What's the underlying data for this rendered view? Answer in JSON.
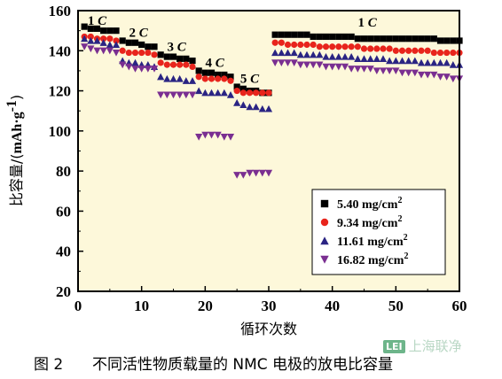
{
  "chart_data": {
    "type": "scatter",
    "xlabel": "循环次数",
    "ylabel_prefix": "比容量/(",
    "ylabel_unit": "mAh·g",
    "ylabel_sup": "-1",
    "ylabel_suffix": ")",
    "xlim": [
      0,
      60
    ],
    "ylim": [
      20,
      160
    ],
    "xticks": [
      0,
      10,
      20,
      30,
      40,
      50,
      60
    ],
    "yticks": [
      20,
      40,
      60,
      80,
      100,
      120,
      140,
      160
    ],
    "grid": false,
    "legend_position": "bottom-right",
    "plot_background": "#fdf8da",
    "annotations": [
      {
        "rate": "1",
        "unit": "C",
        "x": 3,
        "y": 153
      },
      {
        "rate": "2",
        "unit": "C",
        "x": 9.5,
        "y": 147
      },
      {
        "rate": "3",
        "unit": "C",
        "x": 15.5,
        "y": 140
      },
      {
        "rate": "4",
        "unit": "C",
        "x": 21.5,
        "y": 132
      },
      {
        "rate": "5",
        "unit": "C",
        "x": 27,
        "y": 124
      },
      {
        "rate": "1",
        "unit": "C",
        "x": 45.5,
        "y": 152
      }
    ],
    "series": [
      {
        "name": "5.40 mg/cm",
        "sup": "2",
        "marker": "square",
        "color": "#000000",
        "y": [
          152,
          151,
          151,
          150,
          150,
          150,
          145,
          144,
          144,
          143,
          142,
          142,
          138,
          137,
          137,
          136,
          136,
          135,
          130,
          129,
          129,
          128,
          128,
          127,
          122,
          121,
          120,
          120,
          119,
          119,
          148,
          148,
          148,
          148,
          148,
          148,
          147,
          147,
          147,
          147,
          147,
          147,
          147,
          146,
          146,
          146,
          146,
          146,
          146,
          146,
          146,
          146,
          146,
          146,
          146,
          146,
          145,
          145,
          145,
          145
        ]
      },
      {
        "name": "9.34 mg/cm",
        "sup": "2",
        "marker": "circle",
        "color": "#e8241c",
        "y": [
          147,
          147,
          146,
          146,
          146,
          145,
          140,
          139,
          139,
          139,
          139,
          138,
          134,
          133,
          133,
          133,
          133,
          132,
          127,
          126,
          126,
          126,
          126,
          125,
          120,
          119,
          119,
          119,
          119,
          119,
          144,
          144,
          143,
          143,
          143,
          143,
          143,
          142,
          142,
          142,
          142,
          142,
          142,
          142,
          141,
          141,
          141,
          141,
          141,
          140,
          140,
          140,
          140,
          140,
          140,
          139,
          139,
          139,
          139,
          139
        ]
      },
      {
        "name": "11.61 mg/cm",
        "sup": "2",
        "marker": "triangle-up",
        "color": "#2a2483",
        "y": [
          146,
          145,
          145,
          144,
          143,
          143,
          135,
          134,
          134,
          133,
          133,
          132,
          127,
          126,
          126,
          126,
          125,
          125,
          120,
          119,
          119,
          119,
          119,
          118,
          114,
          113,
          112,
          112,
          111,
          111,
          139,
          139,
          139,
          139,
          138,
          138,
          138,
          138,
          137,
          137,
          137,
          137,
          137,
          136,
          136,
          136,
          136,
          136,
          135,
          135,
          135,
          135,
          135,
          134,
          134,
          134,
          134,
          134,
          133,
          133
        ]
      },
      {
        "name": "16.82 mg/cm",
        "sup": "2",
        "marker": "triangle-down",
        "color": "#7a2f91",
        "y": [
          142,
          141,
          140,
          140,
          140,
          139,
          133,
          132,
          131,
          131,
          131,
          131,
          118,
          118,
          118,
          118,
          118,
          118,
          97,
          98,
          98,
          98,
          97,
          97,
          78,
          78,
          79,
          79,
          79,
          79,
          134,
          134,
          134,
          134,
          133,
          133,
          133,
          133,
          132,
          132,
          132,
          132,
          131,
          131,
          131,
          131,
          130,
          130,
          130,
          130,
          129,
          129,
          129,
          128,
          128,
          128,
          127,
          127,
          126,
          126
        ]
      }
    ]
  },
  "caption": {
    "figure_number": "图 2",
    "text": "不同活性物质载量的 NMC 电极的放电比容量"
  },
  "watermark": {
    "mark": "LEI",
    "text": "上海联净"
  }
}
